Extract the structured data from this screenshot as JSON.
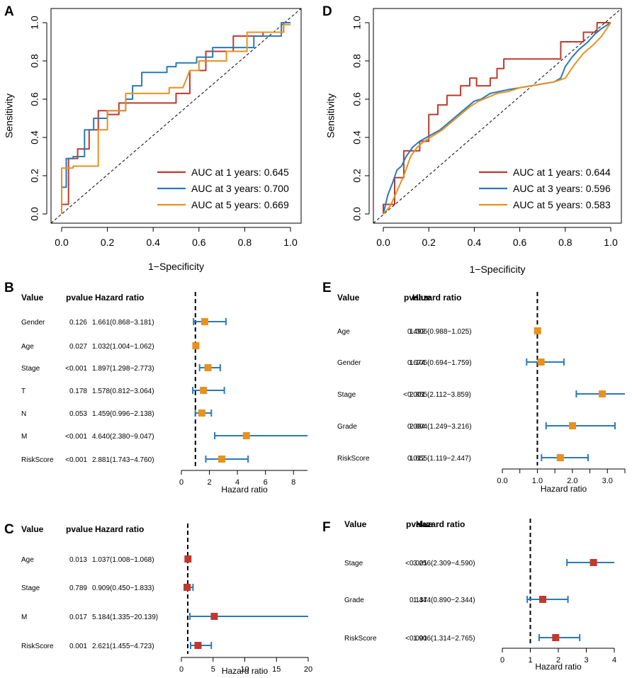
{
  "chart_data": [
    {
      "id": "A",
      "panel_label": "A",
      "type": "line",
      "title": "",
      "xlabel": "1−Specificity",
      "ylabel": "Sensitivity",
      "xlim": [
        0,
        1
      ],
      "ylim": [
        0,
        1
      ],
      "xticks": [
        "0.0",
        "0.2",
        "0.4",
        "0.6",
        "0.8",
        "1.0"
      ],
      "yticks": [
        "0.0",
        "0.2",
        "0.4",
        "0.6",
        "0.8",
        "1.0"
      ],
      "legend_position": "bottom-right",
      "reference_line": "diagonal",
      "series": [
        {
          "name": "AUC at 1 years: 0.645",
          "color": "#c0392b",
          "x": [
            0,
            0,
            0.03,
            0.03,
            0.07,
            0.07,
            0.12,
            0.12,
            0.16,
            0.16,
            0.2,
            0.2,
            0.25,
            0.25,
            0.34,
            0.38,
            0.47,
            0.5,
            0.5,
            0.56,
            0.56,
            0.63,
            0.63,
            0.75,
            0.75,
            0.88,
            0.88,
            0.97,
            0.97,
            1.0
          ],
          "y": [
            0,
            0.05,
            0.05,
            0.29,
            0.29,
            0.34,
            0.34,
            0.44,
            0.44,
            0.54,
            0.54,
            0.52,
            0.52,
            0.58,
            0.58,
            0.58,
            0.58,
            0.58,
            0.63,
            0.63,
            0.75,
            0.75,
            0.85,
            0.85,
            0.93,
            0.93,
            0.95,
            0.95,
            1.0,
            1.0
          ]
        },
        {
          "name": "AUC at 3 years: 0.700",
          "color": "#2a7ab8",
          "x": [
            0,
            0,
            0.02,
            0.02,
            0.05,
            0.05,
            0.1,
            0.1,
            0.14,
            0.14,
            0.2,
            0.2,
            0.28,
            0.28,
            0.31,
            0.31,
            0.35,
            0.35,
            0.46,
            0.46,
            0.5,
            0.5,
            0.59,
            0.59,
            0.66,
            0.66,
            0.84,
            0.84,
            0.96,
            0.96,
            1.0
          ],
          "y": [
            0,
            0.14,
            0.14,
            0.29,
            0.29,
            0.3,
            0.3,
            0.44,
            0.44,
            0.5,
            0.5,
            0.54,
            0.54,
            0.6,
            0.6,
            0.67,
            0.67,
            0.74,
            0.74,
            0.77,
            0.77,
            0.79,
            0.79,
            0.82,
            0.82,
            0.87,
            0.87,
            0.93,
            0.93,
            1.0,
            1.0
          ]
        },
        {
          "name": "AUC at 5 years: 0.669",
          "color": "#e8911e",
          "x": [
            0,
            0,
            0.05,
            0.05,
            0.16,
            0.16,
            0.2,
            0.2,
            0.28,
            0.28,
            0.47,
            0.47,
            0.53,
            0.56,
            0.6,
            0.6,
            0.72,
            0.72,
            0.81,
            0.81,
            0.97,
            0.97,
            1.0
          ],
          "y": [
            0,
            0.24,
            0.24,
            0.25,
            0.25,
            0.44,
            0.44,
            0.54,
            0.54,
            0.63,
            0.63,
            0.66,
            0.66,
            0.75,
            0.75,
            0.8,
            0.8,
            0.85,
            0.85,
            0.95,
            0.95,
            0.99,
            0.99
          ]
        }
      ]
    },
    {
      "id": "D",
      "panel_label": "D",
      "type": "line",
      "title": "",
      "xlabel": "1−Specificity",
      "ylabel": "Sensitivity",
      "xlim": [
        0,
        1
      ],
      "ylim": [
        0,
        1
      ],
      "xticks": [
        "0.0",
        "0.2",
        "0.4",
        "0.6",
        "0.8",
        "1.0"
      ],
      "yticks": [
        "0.0",
        "0.2",
        "0.4",
        "0.6",
        "0.8",
        "1.0"
      ],
      "legend_position": "bottom-right",
      "reference_line": "diagonal",
      "series": [
        {
          "name": "AUC at 1 years: 0.644",
          "color": "#c0392b",
          "x": [
            0,
            0,
            0.05,
            0.05,
            0.09,
            0.09,
            0.16,
            0.16,
            0.2,
            0.2,
            0.24,
            0.24,
            0.28,
            0.28,
            0.34,
            0.34,
            0.38,
            0.38,
            0.41,
            0.41,
            0.47,
            0.47,
            0.5,
            0.5,
            0.53,
            0.53,
            0.6,
            0.6,
            0.78,
            0.78,
            0.88,
            0.88,
            0.94,
            0.94,
            1.0
          ],
          "y": [
            0,
            0.05,
            0.05,
            0.19,
            0.19,
            0.33,
            0.33,
            0.38,
            0.38,
            0.52,
            0.52,
            0.57,
            0.57,
            0.62,
            0.62,
            0.67,
            0.67,
            0.71,
            0.71,
            0.67,
            0.67,
            0.71,
            0.71,
            0.76,
            0.76,
            0.81,
            0.81,
            0.81,
            0.81,
            0.9,
            0.9,
            0.95,
            0.95,
            1.0,
            1.0
          ]
        },
        {
          "name": "AUC at 3 years: 0.596",
          "color": "#2a7ab8",
          "x": [
            0,
            0.02,
            0.04,
            0.06,
            0.08,
            0.1,
            0.13,
            0.16,
            0.19,
            0.22,
            0.25,
            0.28,
            0.31,
            0.34,
            0.37,
            0.4,
            0.43,
            0.47,
            0.51,
            0.55,
            0.6,
            0.65,
            0.7,
            0.75,
            0.78,
            0.8,
            0.83,
            0.86,
            0.9,
            0.93,
            0.96,
            1.0
          ],
          "y": [
            0,
            0.1,
            0.16,
            0.23,
            0.25,
            0.3,
            0.35,
            0.38,
            0.4,
            0.42,
            0.44,
            0.47,
            0.5,
            0.53,
            0.56,
            0.59,
            0.6,
            0.63,
            0.64,
            0.65,
            0.66,
            0.67,
            0.68,
            0.69,
            0.71,
            0.77,
            0.82,
            0.86,
            0.9,
            0.94,
            0.97,
            1.0
          ]
        },
        {
          "name": "AUC at 5 years: 0.583",
          "color": "#e8911e",
          "x": [
            0,
            0.03,
            0.06,
            0.09,
            0.12,
            0.15,
            0.18,
            0.22,
            0.26,
            0.3,
            0.34,
            0.38,
            0.42,
            0.46,
            0.5,
            0.55,
            0.6,
            0.65,
            0.7,
            0.75,
            0.8,
            0.84,
            0.88,
            0.92,
            0.96,
            1.0
          ],
          "y": [
            0,
            0.04,
            0.12,
            0.2,
            0.3,
            0.35,
            0.38,
            0.41,
            0.44,
            0.48,
            0.52,
            0.56,
            0.59,
            0.61,
            0.63,
            0.64,
            0.66,
            0.67,
            0.68,
            0.69,
            0.71,
            0.78,
            0.84,
            0.88,
            0.93,
            1.0
          ]
        }
      ]
    },
    {
      "id": "B",
      "panel_label": "B",
      "type": "forest",
      "headers": {
        "value": "Value",
        "pvalue": "pvalue",
        "hr": "Hazard ratio"
      },
      "xlabel": "Hazard ratio",
      "xlim": [
        0,
        9
      ],
      "xticks": [
        0,
        2,
        4,
        6,
        8
      ],
      "xtick_labels": [
        "0",
        "2",
        "4",
        "6",
        "8"
      ],
      "ref_value": 1,
      "marker_color": "#e8911e",
      "rows": [
        {
          "label": "Gender",
          "pvalue": "0.126",
          "hr_text": "1.661(0.868−3.181)",
          "hr": 1.661,
          "lo": 0.868,
          "hi": 3.181
        },
        {
          "label": "Age",
          "pvalue": "0.027",
          "hr_text": "1.032(1.004−1.062)",
          "hr": 1.032,
          "lo": 1.004,
          "hi": 1.062
        },
        {
          "label": "Stage",
          "pvalue": "<0.001",
          "hr_text": "1.897(1.298−2.773)",
          "hr": 1.897,
          "lo": 1.298,
          "hi": 2.773
        },
        {
          "label": "T",
          "pvalue": "0.178",
          "hr_text": "1.578(0.812−3.064)",
          "hr": 1.578,
          "lo": 0.812,
          "hi": 3.064
        },
        {
          "label": "N",
          "pvalue": "0.053",
          "hr_text": "1.459(0.996−2.138)",
          "hr": 1.459,
          "lo": 0.996,
          "hi": 2.138
        },
        {
          "label": "M",
          "pvalue": "<0.001",
          "hr_text": "4.640(2.380−9.047)",
          "hr": 4.64,
          "lo": 2.38,
          "hi": 9.047
        },
        {
          "label": "RiskScore",
          "pvalue": "<0.001",
          "hr_text": "2.881(1.743−4.760)",
          "hr": 2.881,
          "lo": 1.743,
          "hi": 4.76
        }
      ]
    },
    {
      "id": "E",
      "panel_label": "E",
      "type": "forest",
      "headers": {
        "value": "Value",
        "pvalue": "pvalue",
        "hr": "Hazard ratio"
      },
      "xlabel": "Hazard ratio",
      "xlim": [
        0,
        3.5
      ],
      "xticks": [
        0,
        0.5,
        1.0,
        1.5,
        2.0,
        2.5,
        3.0,
        3.5
      ],
      "xtick_labels": [
        "0.0",
        "",
        "1.0",
        "",
        "2.0",
        "",
        "3.0",
        ""
      ],
      "ref_value": 1,
      "marker_color": "#e8911e",
      "rows": [
        {
          "label": "Age",
          "pvalue": "0.492",
          "hr_text": "1.006(0.988−1.025)",
          "hr": 1.006,
          "lo": 0.988,
          "hi": 1.025
        },
        {
          "label": "Gender",
          "pvalue": "0.674",
          "hr_text": "1.105(0.694−1.759)",
          "hr": 1.105,
          "lo": 0.694,
          "hi": 1.759
        },
        {
          "label": "Stage",
          "pvalue": "<0.001",
          "hr_text": "2.855(2.112−3.859)",
          "hr": 2.855,
          "lo": 2.112,
          "hi": 3.859
        },
        {
          "label": "Grade",
          "pvalue": "0.004",
          "hr_text": "2.004(1.249−3.216)",
          "hr": 2.004,
          "lo": 1.249,
          "hi": 3.216
        },
        {
          "label": "RiskScore",
          "pvalue": "0.012",
          "hr_text": "1.655(1.119−2.447)",
          "hr": 1.655,
          "lo": 1.119,
          "hi": 2.447
        }
      ]
    },
    {
      "id": "C",
      "panel_label": "C",
      "type": "forest",
      "headers": {
        "value": "Value",
        "pvalue": "pvalue",
        "hr": "Hazard ratio"
      },
      "xlabel": "Hazard ratio",
      "xlim": [
        0,
        20
      ],
      "xticks": [
        0,
        5,
        10,
        15,
        20
      ],
      "xtick_labels": [
        "0",
        "5",
        "10",
        "15",
        "20"
      ],
      "ref_value": 1,
      "marker_color": "#c0392b",
      "rows": [
        {
          "label": "Age",
          "pvalue": "0.013",
          "hr_text": "1.037(1.008−1.068)",
          "hr": 1.037,
          "lo": 1.008,
          "hi": 1.068
        },
        {
          "label": "Stage",
          "pvalue": "0.789",
          "hr_text": "0.909(0.450−1.833)",
          "hr": 0.909,
          "lo": 0.45,
          "hi": 1.833
        },
        {
          "label": "M",
          "pvalue": "0.017",
          "hr_text": "5.184(1.335−20.139)",
          "hr": 5.184,
          "lo": 1.335,
          "hi": 20.139
        },
        {
          "label": "RiskScore",
          "pvalue": "0.001",
          "hr_text": "2.621(1.455−4.723)",
          "hr": 2.621,
          "lo": 1.455,
          "hi": 4.723
        }
      ]
    },
    {
      "id": "F",
      "panel_label": "F",
      "type": "forest",
      "headers": {
        "value": "Value",
        "pvalue": "pvalue",
        "hr": "Hazard ratio"
      },
      "xlabel": "Hazard ratio",
      "xlim": [
        0,
        4
      ],
      "xticks": [
        0,
        1,
        2,
        3,
        4
      ],
      "xtick_labels": [
        "0",
        "1",
        "2",
        "3",
        "4"
      ],
      "ref_value": 1,
      "marker_color": "#c0392b",
      "rows": [
        {
          "label": "Stage",
          "pvalue": "<0.001",
          "hr_text": "3.256(2.309−4.590)",
          "hr": 3.256,
          "lo": 2.309,
          "hi": 4.59
        },
        {
          "label": "Grade",
          "pvalue": "0.137",
          "hr_text": "1.444(0.890−2.344)",
          "hr": 1.444,
          "lo": 0.89,
          "hi": 2.344
        },
        {
          "label": "RiskScore",
          "pvalue": "<0.001",
          "hr_text": "1.906(1.314−2.765)",
          "hr": 1.906,
          "lo": 1.314,
          "hi": 2.765
        }
      ]
    }
  ],
  "colors": {
    "ci_line": "#2a7ab8",
    "axis": "#000000",
    "background": "#ffffff"
  }
}
